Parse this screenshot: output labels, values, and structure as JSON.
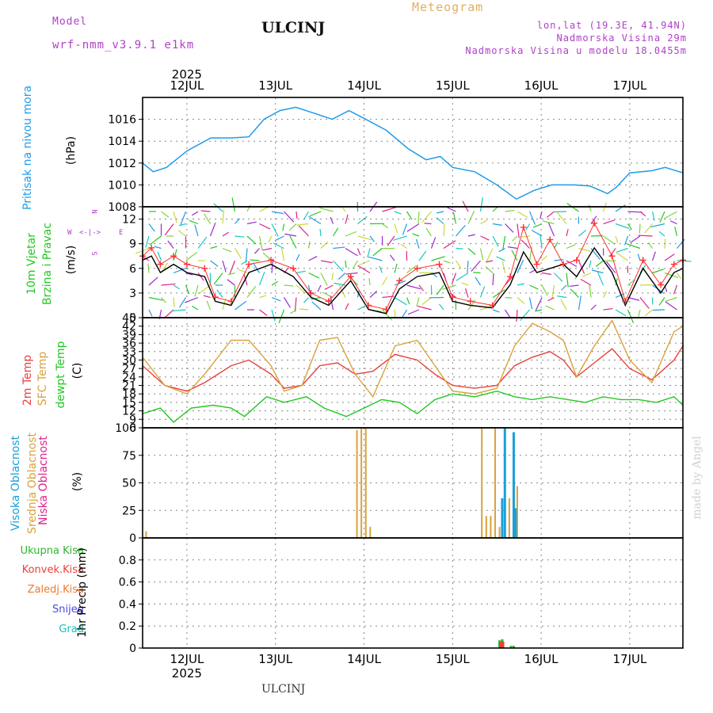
{
  "header": {
    "model_label": "Model",
    "model_name": "wrf-nmm_v3.9.1 e1km",
    "location": "ULCINJ",
    "product": "Meteogram",
    "coords": "lon,lat (19.3E, 41.94N)",
    "elevation": "Nadmorska Visina 29m",
    "model_elevation": "Nadmorska Visina u modelu 18.0455m",
    "watermark": "made by Angel",
    "footer_location": "ULCINJ"
  },
  "colors": {
    "pressure": "#1e9bea",
    "temp2m": "#e8403c",
    "sfc_temp": "#d9a23c",
    "dewpoint": "#22c822",
    "wind_speed": "#000000",
    "gust": "#ff3030",
    "high_cloud": "#1aa0d8",
    "mid_cloud": "#d9a23c",
    "low_cloud": "#e0218a",
    "total_precip": "#2fb52f",
    "conv_precip": "#e8403c",
    "frozen_precip": "#f07a2a",
    "snow": "#4a4ae0",
    "graupel": "#20c0b0",
    "header_purple": "#b040c8",
    "product_orange": "#e0b060"
  },
  "time_axis": {
    "year": "2025",
    "days": [
      "12JUL",
      "13JUL",
      "14JUL",
      "15JUL",
      "16JUL",
      "17JUL"
    ],
    "x_range_days": [
      0,
      6.1
    ]
  },
  "chart_data": [
    {
      "type": "line",
      "panel": "pressure",
      "ylabel_main": "Pritisak na nivou mora",
      "unit": "(hPa)",
      "ylim": [
        1008,
        1018
      ],
      "yticks": [
        "1008",
        "1010",
        "1012",
        "1014",
        "1016"
      ],
      "series": [
        {
          "color_key": "pressure",
          "x": [
            0,
            0.12,
            0.27,
            0.5,
            0.77,
            1.0,
            1.2,
            1.37,
            1.55,
            1.73,
            1.92,
            2.14,
            2.33,
            2.52,
            2.75,
            3.0,
            3.2,
            3.36,
            3.5,
            3.75,
            4.0,
            4.22,
            4.42,
            4.62,
            4.87,
            5.05,
            5.25,
            5.35,
            5.5,
            5.75,
            5.9,
            6.1
          ],
          "y": [
            1012,
            1011.2,
            1011.6,
            1013.1,
            1014.3,
            1014.3,
            1014.4,
            1016.0,
            1016.8,
            1017.1,
            1016.6,
            1016.0,
            1016.8,
            1016.0,
            1015.0,
            1013.3,
            1012.3,
            1012.6,
            1011.6,
            1011.2,
            1010.0,
            1008.7,
            1009.5,
            1010.0,
            1010.0,
            1009.9,
            1009.2,
            1009.8,
            1011.1,
            1011.3,
            1011.6,
            1011.1
          ]
        }
      ]
    },
    {
      "type": "line",
      "panel": "wind",
      "ylabel_main": "10m Vjetar",
      "ylabel_sub": "Brzina i Pravac",
      "unit": "(m/s)",
      "compass": {
        "n": "N",
        "s": "S",
        "e": "E",
        "w": "W"
      },
      "ylim": [
        0,
        13.5
      ],
      "yticks": [
        "0",
        "3",
        "6",
        "9",
        "12"
      ],
      "series": [
        {
          "name": "speed",
          "color_key": "wind_speed",
          "x": [
            0,
            0.1,
            0.2,
            0.35,
            0.5,
            0.7,
            0.82,
            1.0,
            1.2,
            1.45,
            1.7,
            1.9,
            2.1,
            2.35,
            2.55,
            2.75,
            2.9,
            3.1,
            3.35,
            3.5,
            3.7,
            3.95,
            4.15,
            4.3,
            4.45,
            4.6,
            4.75,
            4.9,
            5.1,
            5.3,
            5.45,
            5.65,
            5.85,
            6.0,
            6.1
          ],
          "y": [
            7,
            7.5,
            5.5,
            6.5,
            5.5,
            5.0,
            2.0,
            1.5,
            5.5,
            6.5,
            5.0,
            2.5,
            1.5,
            4.5,
            1.0,
            0.5,
            3.5,
            5.0,
            5.5,
            2.0,
            1.5,
            1.2,
            4.0,
            8.0,
            5.5,
            6.0,
            6.5,
            5.0,
            8.5,
            5.5,
            1.5,
            6.0,
            3.0,
            5.5,
            6.0
          ]
        },
        {
          "name": "gust",
          "color_key": "gust",
          "x": [
            0,
            0.1,
            0.2,
            0.35,
            0.5,
            0.7,
            0.82,
            1.0,
            1.2,
            1.45,
            1.7,
            1.9,
            2.1,
            2.35,
            2.55,
            2.75,
            2.9,
            3.1,
            3.35,
            3.5,
            3.7,
            3.95,
            4.15,
            4.3,
            4.45,
            4.6,
            4.75,
            4.9,
            5.1,
            5.3,
            5.45,
            5.65,
            5.85,
            6.0,
            6.1
          ],
          "y": [
            7.5,
            8.5,
            6.5,
            7.5,
            6.5,
            6.0,
            2.5,
            2.0,
            6.5,
            7.0,
            6.0,
            3.0,
            2.0,
            5.0,
            1.5,
            1.0,
            4.5,
            6.0,
            6.5,
            2.5,
            2.0,
            1.5,
            5.0,
            11.0,
            6.5,
            9.5,
            6.5,
            7.0,
            11.5,
            7.5,
            2.0,
            7.0,
            4.0,
            6.5,
            7.0
          ]
        }
      ]
    },
    {
      "type": "line",
      "panel": "temperature",
      "ylabels": [
        "2m Temp",
        "SFC Temp",
        "dewpt Temp"
      ],
      "unit": "(C)",
      "ylim": [
        6,
        45
      ],
      "yticks": [
        "6",
        "9",
        "12",
        "15",
        "18",
        "21",
        "24",
        "27",
        "30",
        "33",
        "36",
        "39",
        "42",
        "45"
      ],
      "series": [
        {
          "name": "2m Temp",
          "color_key": "temp2m",
          "x": [
            0,
            0.25,
            0.5,
            0.7,
            1.0,
            1.2,
            1.45,
            1.6,
            1.8,
            2.0,
            2.2,
            2.4,
            2.6,
            2.85,
            3.1,
            3.3,
            3.5,
            3.75,
            4.0,
            4.2,
            4.4,
            4.6,
            4.75,
            4.9,
            5.1,
            5.3,
            5.5,
            5.75,
            6.0,
            6.1
          ],
          "y": [
            28,
            21,
            19,
            22,
            28,
            30,
            25,
            20,
            21,
            28,
            29,
            25,
            26,
            32,
            30,
            25,
            21,
            20,
            21,
            28,
            31,
            33,
            30,
            24,
            29,
            34,
            27,
            23,
            30,
            35
          ]
        },
        {
          "name": "SFC Temp",
          "color_key": "sfc_temp",
          "x": [
            0,
            0.25,
            0.5,
            0.7,
            1.0,
            1.2,
            1.45,
            1.6,
            1.8,
            2.0,
            2.2,
            2.4,
            2.6,
            2.85,
            3.1,
            3.3,
            3.5,
            3.75,
            4.0,
            4.2,
            4.4,
            4.6,
            4.75,
            4.9,
            5.1,
            5.3,
            5.5,
            5.75,
            6.0,
            6.1
          ],
          "y": [
            31,
            21,
            18,
            25,
            37,
            37,
            28,
            19,
            21,
            37,
            38,
            25,
            17,
            35,
            37,
            28,
            19,
            18,
            20,
            35,
            43,
            40,
            37,
            24,
            35,
            44,
            30,
            22,
            40,
            42
          ]
        },
        {
          "name": "dewpt Temp",
          "color_key": "dewpoint",
          "x": [
            0,
            0.2,
            0.35,
            0.55,
            0.8,
            1.0,
            1.15,
            1.4,
            1.6,
            1.85,
            2.05,
            2.3,
            2.5,
            2.7,
            2.9,
            3.1,
            3.3,
            3.5,
            3.75,
            4.0,
            4.2,
            4.4,
            4.6,
            4.8,
            5.0,
            5.2,
            5.4,
            5.6,
            5.8,
            6.0,
            6.1
          ],
          "y": [
            11,
            13,
            8,
            13,
            14,
            13,
            10,
            17,
            15,
            17,
            13,
            10,
            13,
            16,
            15,
            11,
            16,
            18,
            17,
            19,
            17,
            16,
            17,
            16,
            15,
            17,
            16,
            16,
            15,
            17,
            14
          ]
        }
      ]
    },
    {
      "type": "bar",
      "panel": "cloud",
      "ylabels": [
        "Visoka Oblacnost",
        "Srednja Oblacnost",
        "Niska Oblacnost"
      ],
      "unit": "(%)",
      "ylim": [
        0,
        100
      ],
      "yticks": [
        "0",
        "25",
        "50",
        "75",
        "100"
      ],
      "series": [
        {
          "name": "Srednja Oblacnost",
          "color_key": "mid_cloud",
          "x": [
            0.04,
            2.42,
            2.47,
            2.52,
            2.57,
            3.83,
            3.88,
            3.93,
            3.98,
            4.03,
            4.14,
            4.23
          ],
          "values": [
            6,
            98,
            100,
            100,
            10,
            100,
            20,
            20,
            100,
            10,
            36,
            47
          ]
        },
        {
          "name": "Visoka Oblacnost",
          "color_key": "high_cloud",
          "x": [
            4.06,
            4.09,
            4.19,
            4.21
          ],
          "values": [
            36,
            100,
            96,
            27
          ]
        },
        {
          "name": "Niska Oblacnost",
          "color_key": "low_cloud",
          "x": [],
          "values": []
        }
      ]
    },
    {
      "type": "bar",
      "panel": "precipitation",
      "legend": [
        "Ukupna Kisa",
        "Konvek.Kisa",
        "Zaledj.Kisa",
        "Snijeg",
        "Grad"
      ],
      "unit": "1hr Precip (mm)",
      "ylim": [
        0,
        1.0
      ],
      "yticks": [
        "0",
        "0.2",
        "0.4",
        "0.6",
        "0.8"
      ],
      "series": [
        {
          "name": "Ukupna Kisa",
          "color_key": "total_precip",
          "x": [
            4.03,
            4.06,
            4.16,
            4.19
          ],
          "values": [
            0.07,
            0.08,
            0.02,
            0.02
          ]
        },
        {
          "name": "Konvek.Kisa",
          "color_key": "conv_precip",
          "x": [
            4.04,
            4.07
          ],
          "values": [
            0.06,
            0.06
          ]
        }
      ]
    }
  ]
}
